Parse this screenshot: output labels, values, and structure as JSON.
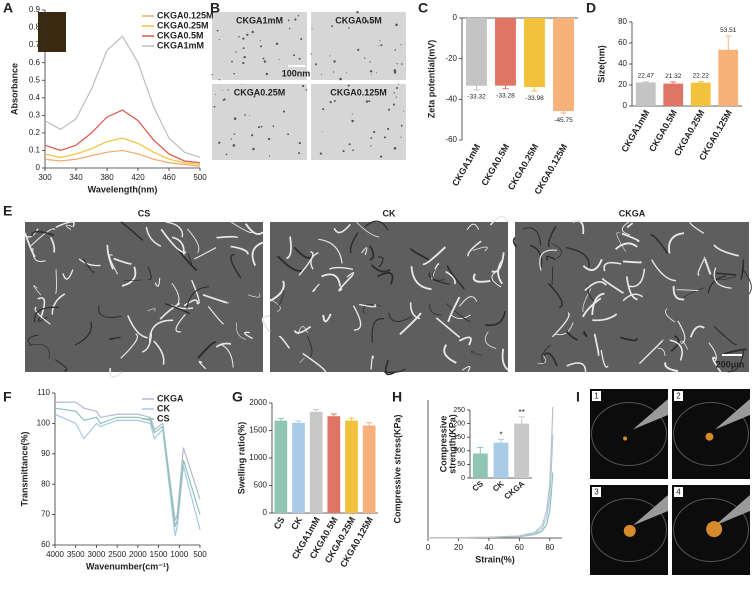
{
  "panel_labels": [
    "A",
    "B",
    "C",
    "D",
    "E",
    "F",
    "G",
    "H",
    "I"
  ],
  "micrographs_B": {
    "labels": [
      "CKGA1mM",
      "CKGA0.5M",
      "CKGA0.25M",
      "CKGA0.125M"
    ],
    "scale_bar": "100nm"
  },
  "sem_E": {
    "labels": [
      "CS",
      "CK",
      "CKGA"
    ],
    "scale_bar": "200μm"
  },
  "photos_I": {
    "labels": [
      "1",
      "2",
      "3",
      "4"
    ]
  },
  "chart_data": [
    {
      "type": "line",
      "xlabel": "Wavelength(nm)",
      "ylabel": "Absorbance",
      "x": [
        300,
        320,
        340,
        360,
        380,
        400,
        420,
        440,
        460,
        480,
        500
      ],
      "xlim": [
        300,
        500
      ],
      "xticks": [
        300,
        340,
        380,
        420,
        460,
        500
      ],
      "ylim": [
        0,
        0.9
      ],
      "yticks": [
        0,
        0.1,
        0.2,
        0.3,
        0.4,
        0.5,
        0.6,
        0.7,
        0.8,
        0.9
      ],
      "legend": "upper right",
      "series": [
        {
          "name": "CKGA0.125M",
          "color": "#f5a86a",
          "values": [
            0.05,
            0.04,
            0.05,
            0.07,
            0.09,
            0.1,
            0.08,
            0.05,
            0.03,
            0.02,
            0.01
          ]
        },
        {
          "name": "CKGA0.25M",
          "color": "#f3c23c",
          "values": [
            0.08,
            0.06,
            0.08,
            0.11,
            0.15,
            0.17,
            0.14,
            0.09,
            0.05,
            0.03,
            0.02
          ]
        },
        {
          "name": "CKGA0.5M",
          "color": "#d9584a",
          "values": [
            0.13,
            0.1,
            0.13,
            0.2,
            0.29,
            0.33,
            0.27,
            0.16,
            0.08,
            0.04,
            0.03
          ]
        },
        {
          "name": "CKGA1mM",
          "color": "#bdbdbd",
          "values": [
            0.27,
            0.22,
            0.28,
            0.45,
            0.67,
            0.75,
            0.6,
            0.35,
            0.17,
            0.09,
            0.06
          ]
        }
      ]
    },
    {
      "type": "bar",
      "ylabel": "Zeta potential(mV)",
      "categories": [
        "CKGA1mM",
        "CKGA0.5M",
        "CKGA0.25M",
        "CKGA0.125M"
      ],
      "values": [
        -33.32,
        -33.28,
        -33.98,
        -45.75
      ],
      "errors": [
        2,
        1.5,
        2,
        1
      ],
      "colors": [
        "#c4c4c4",
        "#e07565",
        "#f3c23c",
        "#f7b27a"
      ],
      "ylim": [
        -60,
        0
      ],
      "yticks": [
        -60,
        -40,
        -20,
        0
      ],
      "data_labels": true
    },
    {
      "type": "bar",
      "ylabel": "Size(nm)",
      "categories": [
        "CKGA1mM",
        "CKGA0.5M",
        "CKGA0.25M",
        "CKGA0.125M"
      ],
      "values": [
        22.47,
        21.32,
        22.22,
        53.51
      ],
      "errors": [
        0.5,
        1.5,
        1,
        13
      ],
      "colors": [
        "#c4c4c4",
        "#e07565",
        "#f3c23c",
        "#f7b27a"
      ],
      "ylim": [
        0,
        80
      ],
      "yticks": [
        0,
        20,
        40,
        60,
        80
      ],
      "data_labels": true
    },
    {
      "type": "line",
      "xlabel": "Wavenumber(cm⁻¹)",
      "ylabel": "Transmittance(%)",
      "x": [
        4000,
        3500,
        3300,
        3000,
        2900,
        2500,
        2000,
        1700,
        1600,
        1400,
        1100,
        1050,
        900,
        500
      ],
      "xlim": [
        4000,
        500
      ],
      "xticks": [
        4000,
        3500,
        3000,
        2500,
        2000,
        1500,
        1000,
        500
      ],
      "ylim": [
        60,
        110
      ],
      "yticks": [
        60,
        70,
        80,
        90,
        100,
        110
      ],
      "legend": "upper right",
      "series": [
        {
          "name": "CKGA",
          "color": "#b3b9d4",
          "values": [
            107,
            107,
            105,
            104,
            102,
            103,
            103,
            102,
            98,
            100,
            68,
            70,
            92,
            75
          ]
        },
        {
          "name": "CK",
          "color": "#a6c8ea",
          "values": [
            103,
            100,
            95,
            100,
            99,
            101,
            101,
            100,
            95,
            98,
            63,
            66,
            86,
            65
          ]
        },
        {
          "name": "CS",
          "color": "#8cc4b0",
          "values": [
            105,
            104,
            101,
            102,
            100,
            102,
            102,
            101,
            97,
            99,
            66,
            68,
            88,
            70
          ]
        }
      ]
    },
    {
      "type": "bar",
      "ylabel": "Swelling ratio(%)",
      "categories": [
        "CS",
        "CK",
        "CKGA1mM",
        "CKGA0.5M",
        "CKGA0.25M",
        "CKGA0.125M"
      ],
      "values": [
        1680,
        1640,
        1840,
        1760,
        1680,
        1590
      ],
      "errors": [
        40,
        35,
        45,
        40,
        45,
        50
      ],
      "colors": [
        "#8ec5b3",
        "#a9cbe8",
        "#c8c8c8",
        "#e07565",
        "#f3c23c",
        "#f6b07c"
      ],
      "ylim": [
        0,
        2000
      ],
      "yticks": [
        0,
        500,
        1000,
        1500,
        2000
      ]
    },
    {
      "type": "line",
      "xlabel": "Strain(%)",
      "ylabel": "Compressive stress(KPa)",
      "x": [
        0,
        20,
        40,
        60,
        70,
        75,
        78,
        80,
        81,
        82
      ],
      "xlim": [
        0,
        88
      ],
      "xticks": [
        0,
        20,
        40,
        60,
        80
      ],
      "ylim": [
        0,
        200
      ],
      "series": [
        {
          "name": "CS",
          "color": "#8ec5b3",
          "values": [
            0,
            0.3,
            1,
            2,
            5,
            10,
            20,
            40,
            65,
            95
          ]
        },
        {
          "name": "CK",
          "color": "#a9cbe8",
          "values": [
            0,
            0.5,
            1,
            2.5,
            6,
            14,
            30,
            60,
            100,
            150
          ]
        },
        {
          "name": "CKGA",
          "color": "#c0c0c0",
          "values": [
            0,
            0.5,
            1,
            3,
            8,
            18,
            40,
            80,
            130,
            190
          ]
        }
      ]
    },
    {
      "type": "bar",
      "ylabel": [
        "Compressive",
        "strength(KPa)"
      ],
      "categories": [
        "CS",
        "CK",
        "CKGA"
      ],
      "values": [
        90,
        130,
        200
      ],
      "errors": [
        22,
        12,
        25
      ],
      "colors": [
        "#8ec5b3",
        "#a9cbe8",
        "#c8c8c8"
      ],
      "ylim": [
        0,
        250
      ],
      "yticks": [
        0,
        50,
        100,
        150,
        200,
        250
      ],
      "annotations": [
        "*",
        "**"
      ]
    }
  ]
}
